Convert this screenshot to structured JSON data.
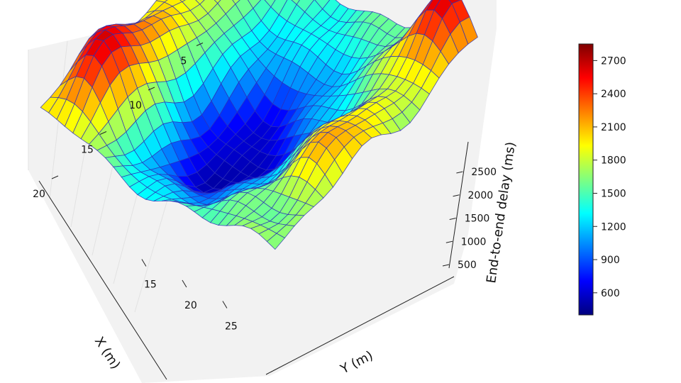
{
  "chart_data": {
    "type": "surface3d",
    "title": "",
    "x_axis": {
      "label": "X (m)",
      "ticks": [
        "5",
        "10",
        "15",
        "20"
      ],
      "range": [
        1,
        22
      ]
    },
    "y_axis": {
      "label": "Y (m)",
      "ticks": [
        "15",
        "20",
        "25"
      ],
      "range": [
        1,
        30
      ]
    },
    "z_axis": {
      "label": "End-to-end delay (ms)",
      "ticks": [
        "500",
        "1000",
        "1500",
        "2000",
        "2500"
      ],
      "range": [
        400,
        2850
      ]
    },
    "colorbar": {
      "ticks": [
        "600",
        "900",
        "1200",
        "1500",
        "1800",
        "2100",
        "2400",
        "2700"
      ],
      "range": [
        400,
        2850
      ],
      "colormap": "jet"
    },
    "surface_features": [
      {
        "description": "global minimum (deep blue trough)",
        "x": 13,
        "y": 14,
        "z": 450
      },
      {
        "description": "peak",
        "x": 17,
        "y": 4,
        "z": 2750
      },
      {
        "description": "peak",
        "x": 2,
        "y": 27,
        "z": 2700
      },
      {
        "description": "ridge",
        "x": 13,
        "y": 27,
        "z": 2300
      },
      {
        "description": "ridge",
        "x": 10,
        "y": 4,
        "z": 2100
      },
      {
        "description": "plateau",
        "x": 3,
        "y": 3,
        "z": 1700
      }
    ]
  }
}
